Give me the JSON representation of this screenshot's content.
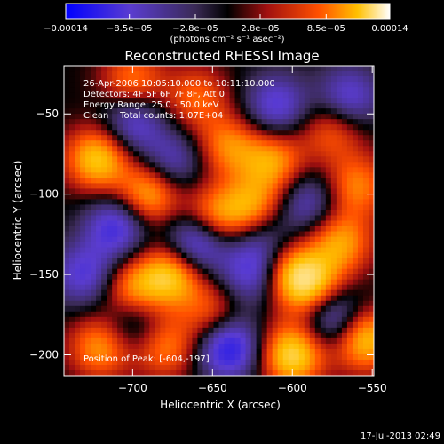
{
  "chart_data": {
    "type": "heatmap",
    "title": "Reconstructed RHESSI Image",
    "xlabel": "Heliocentric X (arcsec)",
    "ylabel": "Heliocentric Y (arcsec)",
    "xlim": [
      -743,
      -549
    ],
    "ylim": [
      -213,
      -20
    ],
    "x_ticks": [
      -700,
      -650,
      -600,
      -550
    ],
    "y_ticks": [
      -200,
      -150,
      -100,
      -50
    ],
    "x_tick_labels": [
      "−700",
      "−650",
      "−600",
      "−550"
    ],
    "y_tick_labels": [
      "−200",
      "−150",
      "−100",
      "−50"
    ],
    "colorbar": {
      "min": -0.00014,
      "max": 0.00014,
      "tick_values": [
        -0.00014,
        -8.5e-05,
        -2.8e-05,
        2.8e-05,
        8.5e-05,
        0.00014
      ],
      "tick_labels": [
        "−0.00014",
        "−8.5e−05",
        "−2.8e−05",
        "2.8e−05",
        "8.5e−05",
        "0.00014"
      ],
      "units_label": "(photons cm⁻² s⁻¹ asec⁻²)"
    },
    "annotations": [
      "26-Apr-2006 10:05:10.000 to 10:11:10.000",
      "Detectors: 4F 5F 6F 7F 8F, Att 0",
      "Energy Range: 25.0 - 50.0 keV",
      "Clean    Total counts: 1.07E+04",
      "Position of Peak: [-604,-197]"
    ],
    "peak_position": [
      -604,
      -197
    ],
    "grid": false,
    "legend": "colorbar at top",
    "blobs": [
      {
        "x": -722,
        "y": -78,
        "v": 0.9
      },
      {
        "x": -700,
        "y": -30,
        "v": 0.6
      },
      {
        "x": -690,
        "y": -100,
        "v": 0.8
      },
      {
        "x": -675,
        "y": -150,
        "v": 0.9
      },
      {
        "x": -700,
        "y": -160,
        "v": 0.7
      },
      {
        "x": -650,
        "y": -115,
        "v": 0.7
      },
      {
        "x": -640,
        "y": -70,
        "v": 0.6
      },
      {
        "x": -625,
        "y": -110,
        "v": 0.8
      },
      {
        "x": -612,
        "y": -80,
        "v": 0.7
      },
      {
        "x": -600,
        "y": -150,
        "v": 0.8
      },
      {
        "x": -585,
        "y": -160,
        "v": 0.75
      },
      {
        "x": -600,
        "y": -200,
        "v": 1.0
      },
      {
        "x": -555,
        "y": -190,
        "v": 0.9
      },
      {
        "x": -570,
        "y": -130,
        "v": 0.7
      },
      {
        "x": -560,
        "y": -95,
        "v": 0.6
      },
      {
        "x": -575,
        "y": -60,
        "v": 0.5
      },
      {
        "x": -720,
        "y": -195,
        "v": 0.7
      },
      {
        "x": -680,
        "y": -195,
        "v": 0.6
      },
      {
        "x": -650,
        "y": -175,
        "v": 0.5
      },
      {
        "x": -660,
        "y": -40,
        "v": 0.5
      },
      {
        "x": -710,
        "y": -120,
        "v": -0.7
      },
      {
        "x": -700,
        "y": -55,
        "v": -0.6
      },
      {
        "x": -660,
        "y": -130,
        "v": -0.9
      },
      {
        "x": -625,
        "y": -150,
        "v": -0.6
      },
      {
        "x": -640,
        "y": -195,
        "v": -0.9
      },
      {
        "x": -610,
        "y": -45,
        "v": -0.6
      },
      {
        "x": -575,
        "y": -175,
        "v": -0.8
      },
      {
        "x": -565,
        "y": -40,
        "v": -0.6
      },
      {
        "x": -700,
        "y": -180,
        "v": -0.5
      },
      {
        "x": -730,
        "y": -150,
        "v": -0.6
      },
      {
        "x": -620,
        "y": -125,
        "v": -0.5
      },
      {
        "x": -590,
        "y": -105,
        "v": -0.5
      },
      {
        "x": -675,
        "y": -80,
        "v": -0.5
      }
    ]
  },
  "footer": {
    "timestamp": "17-Jul-2013 02:49"
  },
  "colors": {
    "background": "#000000",
    "text": "#ffffff",
    "colormap": [
      "#0000ff",
      "#7a3cc8",
      "#3a2a4a",
      "#000000",
      "#8a1a1a",
      "#e82000",
      "#ffb000",
      "#ffff80",
      "#ffffff"
    ]
  }
}
